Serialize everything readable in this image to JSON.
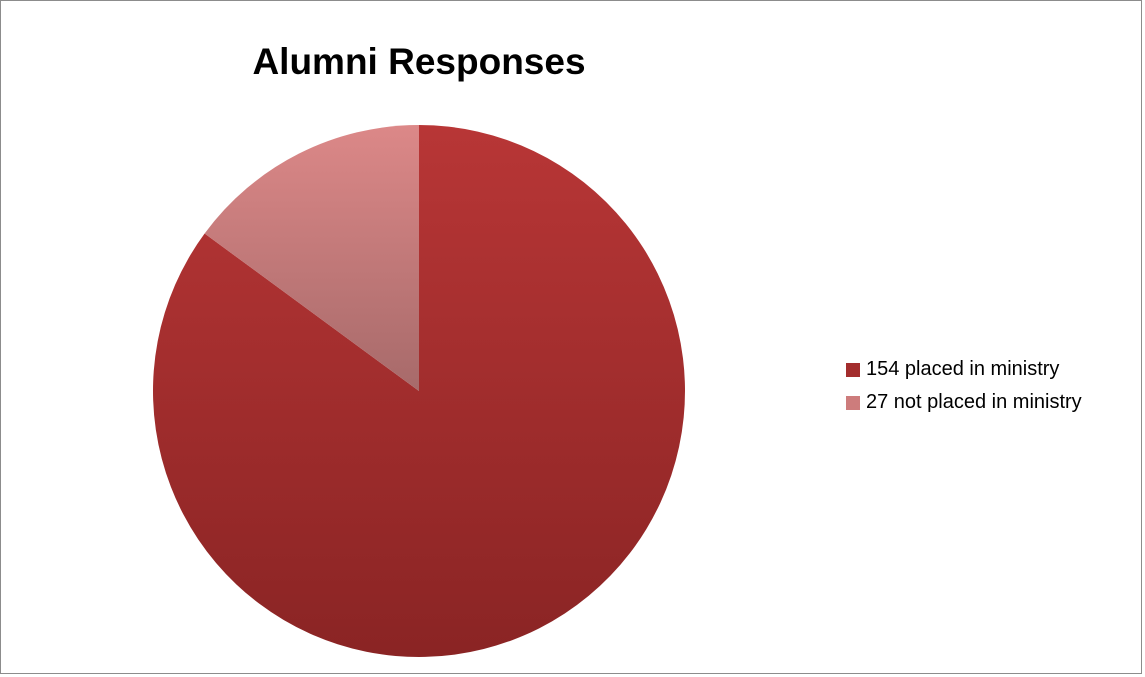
{
  "chart_data": {
    "type": "pie",
    "title": "Alumni Responses",
    "categories": [
      "154 placed in ministry",
      "27 not placed in ministry"
    ],
    "values": [
      154,
      27
    ],
    "colors": [
      "#a32d2d",
      "#cd7c7c"
    ],
    "legend_position": "right",
    "start_angle_deg": 0,
    "direction": "clockwise"
  }
}
